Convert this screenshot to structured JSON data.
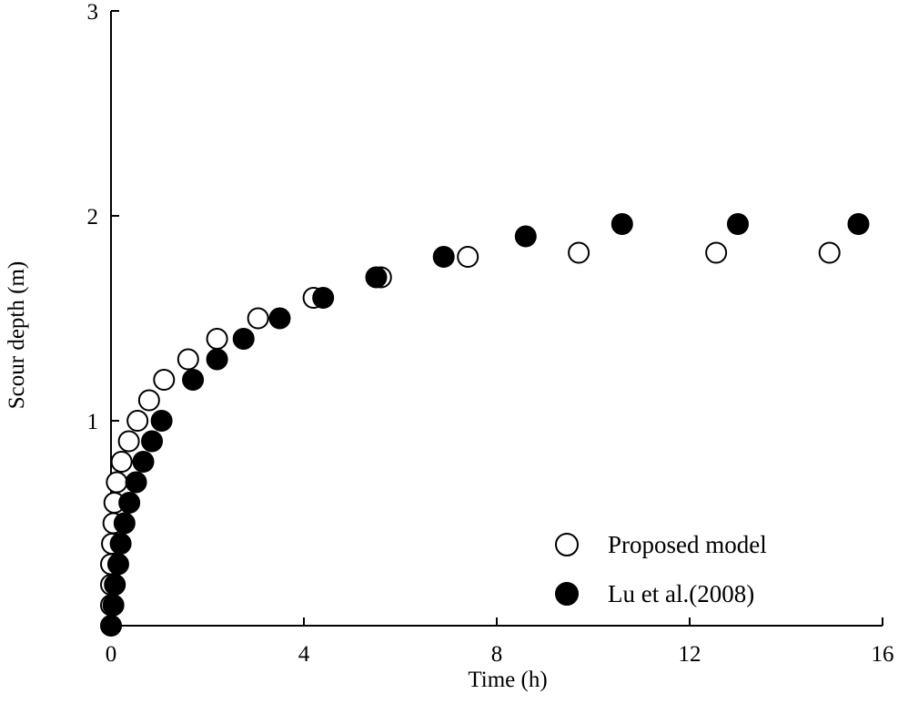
{
  "chart_data": {
    "type": "scatter",
    "title": "",
    "xlabel": "Time (h)",
    "ylabel": "Scour depth (m)",
    "xlim": [
      0,
      16
    ],
    "ylim": [
      0,
      3
    ],
    "x_ticks": [
      0,
      4,
      8,
      12,
      16
    ],
    "x_tick_labels": [
      "0",
      "4",
      "8",
      "12",
      "16"
    ],
    "y_ticks": [
      1,
      2,
      3
    ],
    "y_tick_labels": [
      "1",
      "2",
      "3"
    ],
    "grid": false,
    "legend_position": "bottom-right",
    "series": [
      {
        "name": "Proposed model",
        "marker": "open-circle",
        "color": "#000000",
        "points": [
          [
            0.0,
            0.1
          ],
          [
            0.0,
            0.2
          ],
          [
            0.0,
            0.3
          ],
          [
            0.02,
            0.4
          ],
          [
            0.05,
            0.5
          ],
          [
            0.07,
            0.6
          ],
          [
            0.12,
            0.7
          ],
          [
            0.22,
            0.8
          ],
          [
            0.37,
            0.9
          ],
          [
            0.55,
            1.0
          ],
          [
            0.79,
            1.1
          ],
          [
            1.1,
            1.2
          ],
          [
            1.6,
            1.3
          ],
          [
            2.2,
            1.4
          ],
          [
            3.05,
            1.5
          ],
          [
            4.2,
            1.6
          ],
          [
            5.6,
            1.7
          ],
          [
            7.4,
            1.8
          ],
          [
            9.7,
            1.82
          ],
          [
            12.55,
            1.82
          ],
          [
            14.9,
            1.82
          ]
        ]
      },
      {
        "name": "Lu et al.(2008)",
        "marker": "filled-circle",
        "color": "#000000",
        "points": [
          [
            0.0,
            0.0
          ],
          [
            0.05,
            0.1
          ],
          [
            0.08,
            0.2
          ],
          [
            0.15,
            0.3
          ],
          [
            0.2,
            0.4
          ],
          [
            0.28,
            0.5
          ],
          [
            0.38,
            0.6
          ],
          [
            0.52,
            0.7
          ],
          [
            0.67,
            0.8
          ],
          [
            0.85,
            0.9
          ],
          [
            1.05,
            1.0
          ],
          [
            1.7,
            1.2
          ],
          [
            2.2,
            1.3
          ],
          [
            2.75,
            1.4
          ],
          [
            3.5,
            1.5
          ],
          [
            4.4,
            1.6
          ],
          [
            5.5,
            1.7
          ],
          [
            6.9,
            1.8
          ],
          [
            8.6,
            1.9
          ],
          [
            10.6,
            1.96
          ],
          [
            13.0,
            1.96
          ],
          [
            15.5,
            1.96
          ]
        ]
      }
    ]
  }
}
